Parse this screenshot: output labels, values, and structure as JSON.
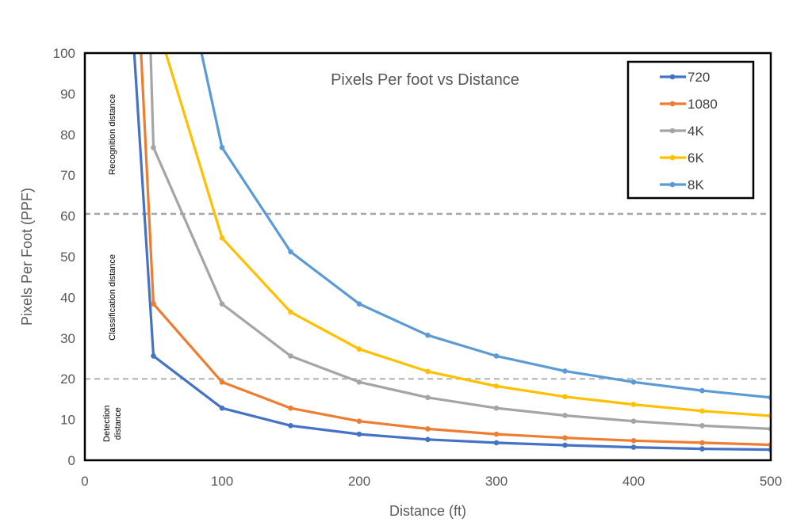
{
  "chart_data": {
    "type": "line",
    "title": "Pixels Per foot vs Distance",
    "xlabel": "Distance (ft)",
    "ylabel": "Pixels Per Foot (PPF)",
    "xlim": [
      0,
      500
    ],
    "ylim": [
      0,
      100
    ],
    "x_ticks": [
      0,
      100,
      200,
      300,
      400,
      500
    ],
    "y_ticks": [
      0,
      10,
      20,
      30,
      40,
      50,
      60,
      70,
      80,
      90,
      100
    ],
    "grid": false,
    "legend_position": "top-right",
    "series": [
      {
        "name": "720",
        "color": "#4472C4",
        "points": [
          [
            36,
            100
          ],
          [
            50,
            25.6
          ],
          [
            100,
            12.8
          ],
          [
            150,
            8.5
          ],
          [
            200,
            6.4
          ],
          [
            250,
            5.1
          ],
          [
            300,
            4.3
          ],
          [
            350,
            3.7
          ],
          [
            400,
            3.2
          ],
          [
            450,
            2.8
          ],
          [
            500,
            2.6
          ]
        ]
      },
      {
        "name": "1080",
        "color": "#ED7D31",
        "points": [
          [
            41,
            100
          ],
          [
            50,
            38.4
          ],
          [
            100,
            19.2
          ],
          [
            150,
            12.8
          ],
          [
            200,
            9.6
          ],
          [
            250,
            7.7
          ],
          [
            300,
            6.4
          ],
          [
            350,
            5.5
          ],
          [
            400,
            4.8
          ],
          [
            450,
            4.3
          ],
          [
            500,
            3.8
          ]
        ]
      },
      {
        "name": "4K",
        "color": "#A5A5A5",
        "points": [
          [
            48,
            100
          ],
          [
            50,
            76.8
          ],
          [
            100,
            38.4
          ],
          [
            150,
            25.6
          ],
          [
            200,
            19.2
          ],
          [
            250,
            15.4
          ],
          [
            300,
            12.8
          ],
          [
            350,
            11
          ],
          [
            400,
            9.6
          ],
          [
            450,
            8.5
          ],
          [
            500,
            7.7
          ]
        ]
      },
      {
        "name": "6K",
        "color": "#FFC000",
        "points": [
          [
            59,
            100
          ],
          [
            100,
            54.6
          ],
          [
            150,
            36.4
          ],
          [
            200,
            27.3
          ],
          [
            250,
            21.8
          ],
          [
            300,
            18.2
          ],
          [
            350,
            15.6
          ],
          [
            400,
            13.7
          ],
          [
            450,
            12.1
          ],
          [
            500,
            10.9
          ]
        ]
      },
      {
        "name": "8K",
        "color": "#5B9BD5",
        "points": [
          [
            85,
            100
          ],
          [
            100,
            76.8
          ],
          [
            150,
            51.2
          ],
          [
            200,
            38.4
          ],
          [
            250,
            30.7
          ],
          [
            300,
            25.6
          ],
          [
            350,
            21.9
          ],
          [
            400,
            19.2
          ],
          [
            450,
            17.1
          ],
          [
            500,
            15.4
          ]
        ]
      }
    ],
    "threshold_lines": [
      {
        "y": 60.5,
        "color": "#A6A6A6"
      },
      {
        "y": 20,
        "color": "#BFBFBF"
      }
    ],
    "zone_labels": [
      {
        "lines": [
          "Recognition distance"
        ],
        "y_center": 80
      },
      {
        "lines": [
          "Classification distance"
        ],
        "y_center": 40
      },
      {
        "lines": [
          "Detection",
          "distance"
        ],
        "y_center": 9
      }
    ]
  }
}
